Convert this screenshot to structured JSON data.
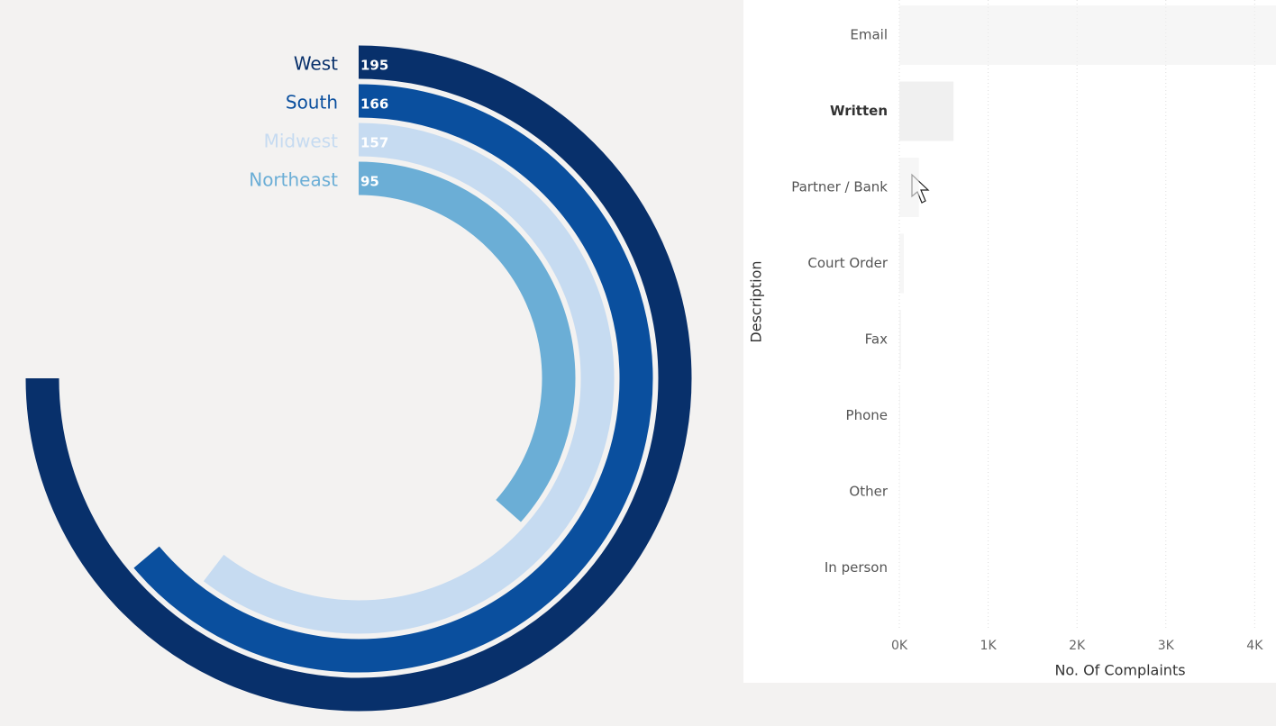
{
  "chart_data": [
    {
      "type": "radial_bar",
      "categories": [
        "West",
        "South",
        "Midwest",
        "Northeast"
      ],
      "values": [
        195,
        166,
        157,
        95
      ],
      "colors": [
        "#08306b",
        "#0a4f9e",
        "#c6dbf1",
        "#6baed6"
      ],
      "ylim": [
        0,
        260
      ]
    },
    {
      "type": "hbar",
      "categories": [
        "Email",
        "Written",
        "Partner / Bank",
        "Court Order",
        "Fax",
        "Phone",
        "Other",
        "In person"
      ],
      "values": [
        4300,
        610,
        220,
        50,
        20,
        10,
        5,
        3
      ],
      "color": "#f0f0f0",
      "selected": "Written",
      "y_label": "Description",
      "x_label": "No. Of Complaints",
      "xlim": [
        0,
        4240
      ],
      "xticks": [
        {
          "value": 0,
          "label": "0K"
        },
        {
          "value": 1000,
          "label": "1K"
        },
        {
          "value": 2000,
          "label": "2K"
        },
        {
          "value": 3000,
          "label": "3K"
        },
        {
          "value": 4000,
          "label": "4K"
        }
      ],
      "grid": true
    }
  ]
}
